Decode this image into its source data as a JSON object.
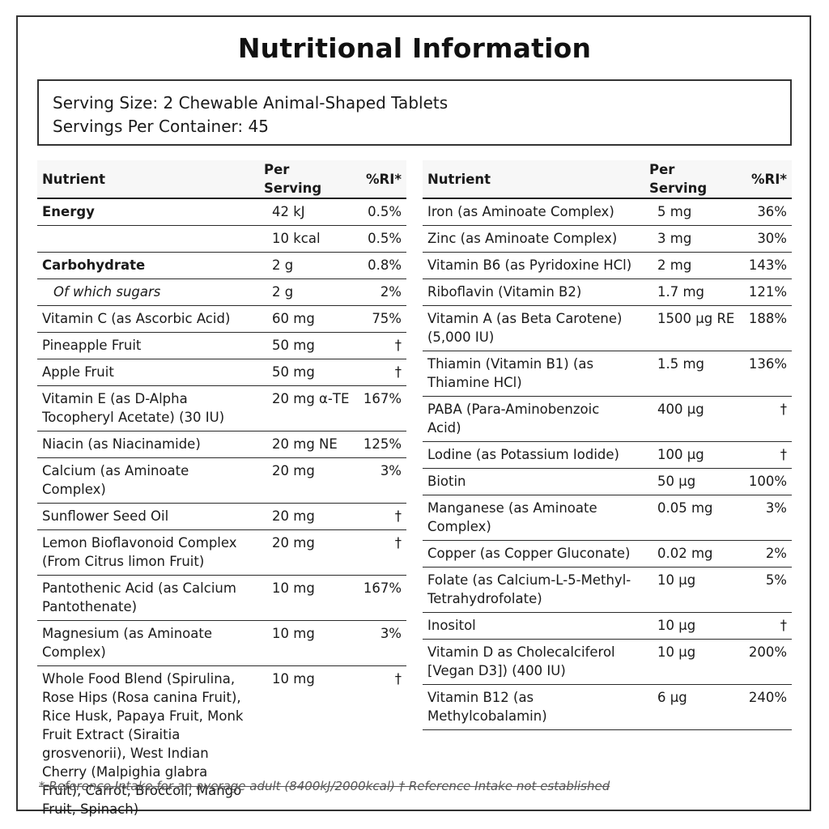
{
  "title": "Nutritional Information",
  "serving": {
    "size": "Serving Size: 2 Chewable Animal-Shaped Tablets",
    "per_container": "Servings Per Container: 45"
  },
  "headers": {
    "nutrient": "Nutrient",
    "per_serving": "Per Serving",
    "ri": "%RI*"
  },
  "left_rows": [
    {
      "nutrient": "Energy",
      "per_serving": "42 kJ",
      "ri": "0.5%",
      "style": "bold"
    },
    {
      "nutrient": "",
      "per_serving": "10 kcal",
      "ri": "0.5%",
      "style": ""
    },
    {
      "nutrient": "Carbohydrate",
      "per_serving": "2 g",
      "ri": "0.8%",
      "style": "bold"
    },
    {
      "nutrient": "Of which sugars",
      "per_serving": "2 g",
      "ri": "2%",
      "style": "sub"
    },
    {
      "nutrient": "Vitamin C (as Ascorbic Acid)",
      "per_serving": "60 mg",
      "ri": "75%",
      "style": ""
    },
    {
      "nutrient": "Pineapple Fruit",
      "per_serving": "50 mg",
      "ri": "†",
      "style": ""
    },
    {
      "nutrient": "Apple Fruit",
      "per_serving": "50 mg",
      "ri": "†",
      "style": ""
    },
    {
      "nutrient": "Vitamin E (as D-Alpha Tocopheryl Acetate) (30 IU)",
      "per_serving": "20 mg α-TE",
      "ri": "167%",
      "style": ""
    },
    {
      "nutrient": "Niacin (as Niacinamide)",
      "per_serving": "20 mg NE",
      "ri": "125%",
      "style": ""
    },
    {
      "nutrient": "Calcium (as Aminoate Complex)",
      "per_serving": "20 mg",
      "ri": "3%",
      "style": ""
    },
    {
      "nutrient": "Sunflower Seed Oil",
      "per_serving": "20 mg",
      "ri": "†",
      "style": ""
    },
    {
      "nutrient": "Lemon Bioflavonoid Complex (From Citrus limon Fruit)",
      "per_serving": "20 mg",
      "ri": "†",
      "style": ""
    },
    {
      "nutrient": "Pantothenic Acid (as Calcium Pantothenate)",
      "per_serving": "10 mg",
      "ri": "167%",
      "style": ""
    },
    {
      "nutrient": "Magnesium (as Aminoate Complex)",
      "per_serving": "10 mg",
      "ri": "3%",
      "style": ""
    },
    {
      "nutrient": "Whole Food Blend (Spirulina, Rose Hips (Rosa canina Fruit), Rice Husk, Papaya Fruit, Monk Fruit Extract (Siraitia grosvenorii), West Indian Cherry (Malpighia glabra Fruit), Carrot, Broccoli, Mango Fruit, Spinach)",
      "per_serving": "10 mg",
      "ri": "†",
      "style": ""
    }
  ],
  "right_rows": [
    {
      "nutrient": "Iron (as Aminoate Complex)",
      "per_serving": "5 mg",
      "ri": "36%",
      "style": ""
    },
    {
      "nutrient": "Zinc (as Aminoate Complex)",
      "per_serving": "3 mg",
      "ri": "30%",
      "style": ""
    },
    {
      "nutrient": "Vitamin B6 (as Pyridoxine HCl)",
      "per_serving": "2 mg",
      "ri": "143%",
      "style": ""
    },
    {
      "nutrient": "Riboflavin (Vitamin B2)",
      "per_serving": "1.7 mg",
      "ri": "121%",
      "style": ""
    },
    {
      "nutrient": "Vitamin A (as Beta Carotene) (5,000 IU)",
      "per_serving": "1500 µg RE",
      "ri": "188%",
      "style": ""
    },
    {
      "nutrient": "Thiamin (Vitamin B1) (as Thiamine HCl)",
      "per_serving": "1.5 mg",
      "ri": "136%",
      "style": ""
    },
    {
      "nutrient": "PABA (Para-Aminobenzoic Acid)",
      "per_serving": "400 µg",
      "ri": "†",
      "style": ""
    },
    {
      "nutrient": "Lodine (as Potassium Iodide)",
      "per_serving": "100 µg",
      "ri": "†",
      "style": ""
    },
    {
      "nutrient": "Biotin",
      "per_serving": "50 µg",
      "ri": "100%",
      "style": ""
    },
    {
      "nutrient": "Manganese (as Aminoate Complex)",
      "per_serving": "0.05 mg",
      "ri": "3%",
      "style": ""
    },
    {
      "nutrient": "Copper (as Copper Gluconate)",
      "per_serving": "0.02 mg",
      "ri": "2%",
      "style": ""
    },
    {
      "nutrient": "Folate (as Calcium-L-5-Methyl-Tetrahydrofolate)",
      "per_serving": "10 µg",
      "ri": "5%",
      "style": ""
    },
    {
      "nutrient": "Inositol",
      "per_serving": "10 µg",
      "ri": "†",
      "style": ""
    },
    {
      "nutrient": "Vitamin D as Cholecalciferol [Vegan D3]) (400 IU)",
      "per_serving": "10 µg",
      "ri": "200%",
      "style": ""
    },
    {
      "nutrient": "Vitamin B12 (as Methylcobalamin)",
      "per_serving": "6 µg",
      "ri": "240%",
      "style": ""
    }
  ],
  "footnote": "* Reference Intake for an average adult (8400kJ/2000kcal) † Reference Intake not established"
}
